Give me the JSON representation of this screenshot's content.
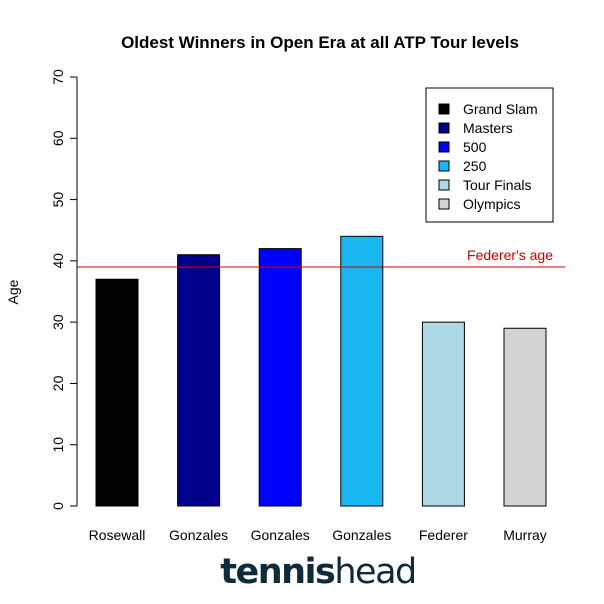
{
  "chart_data": {
    "type": "bar",
    "title": "Oldest Winners in Open Era at all ATP Tour levels",
    "xlabel": "",
    "ylabel": "Age",
    "ylim": [
      0,
      70
    ],
    "yticks": [
      "0",
      "10",
      "20",
      "30",
      "40",
      "50",
      "60",
      "70"
    ],
    "categories": [
      "Rosewall",
      "Gonzales",
      "Gonzales",
      "Gonzales",
      "Federer",
      "Murray"
    ],
    "values": [
      37,
      41,
      42,
      44,
      30,
      29
    ],
    "colors": [
      "#000000",
      "#00008b",
      "#0000ff",
      "#1ab8f2",
      "#add8e6",
      "#d3d3d3"
    ],
    "legend": {
      "position": "top-right",
      "entries": [
        {
          "label": "Grand Slam",
          "color": "#000000"
        },
        {
          "label": "Masters",
          "color": "#00008b"
        },
        {
          "label": "500",
          "color": "#0000ff"
        },
        {
          "label": "250",
          "color": "#1ab8f2"
        },
        {
          "label": "Tour Finals",
          "color": "#add8e6"
        },
        {
          "label": "Olympics",
          "color": "#d3d3d3"
        }
      ]
    },
    "reference_line": {
      "value": 39,
      "label": "Federer's age",
      "color": "#cc0000"
    },
    "grid": false
  },
  "branding": {
    "logo_part1": "tennis",
    "logo_part2": "head"
  }
}
